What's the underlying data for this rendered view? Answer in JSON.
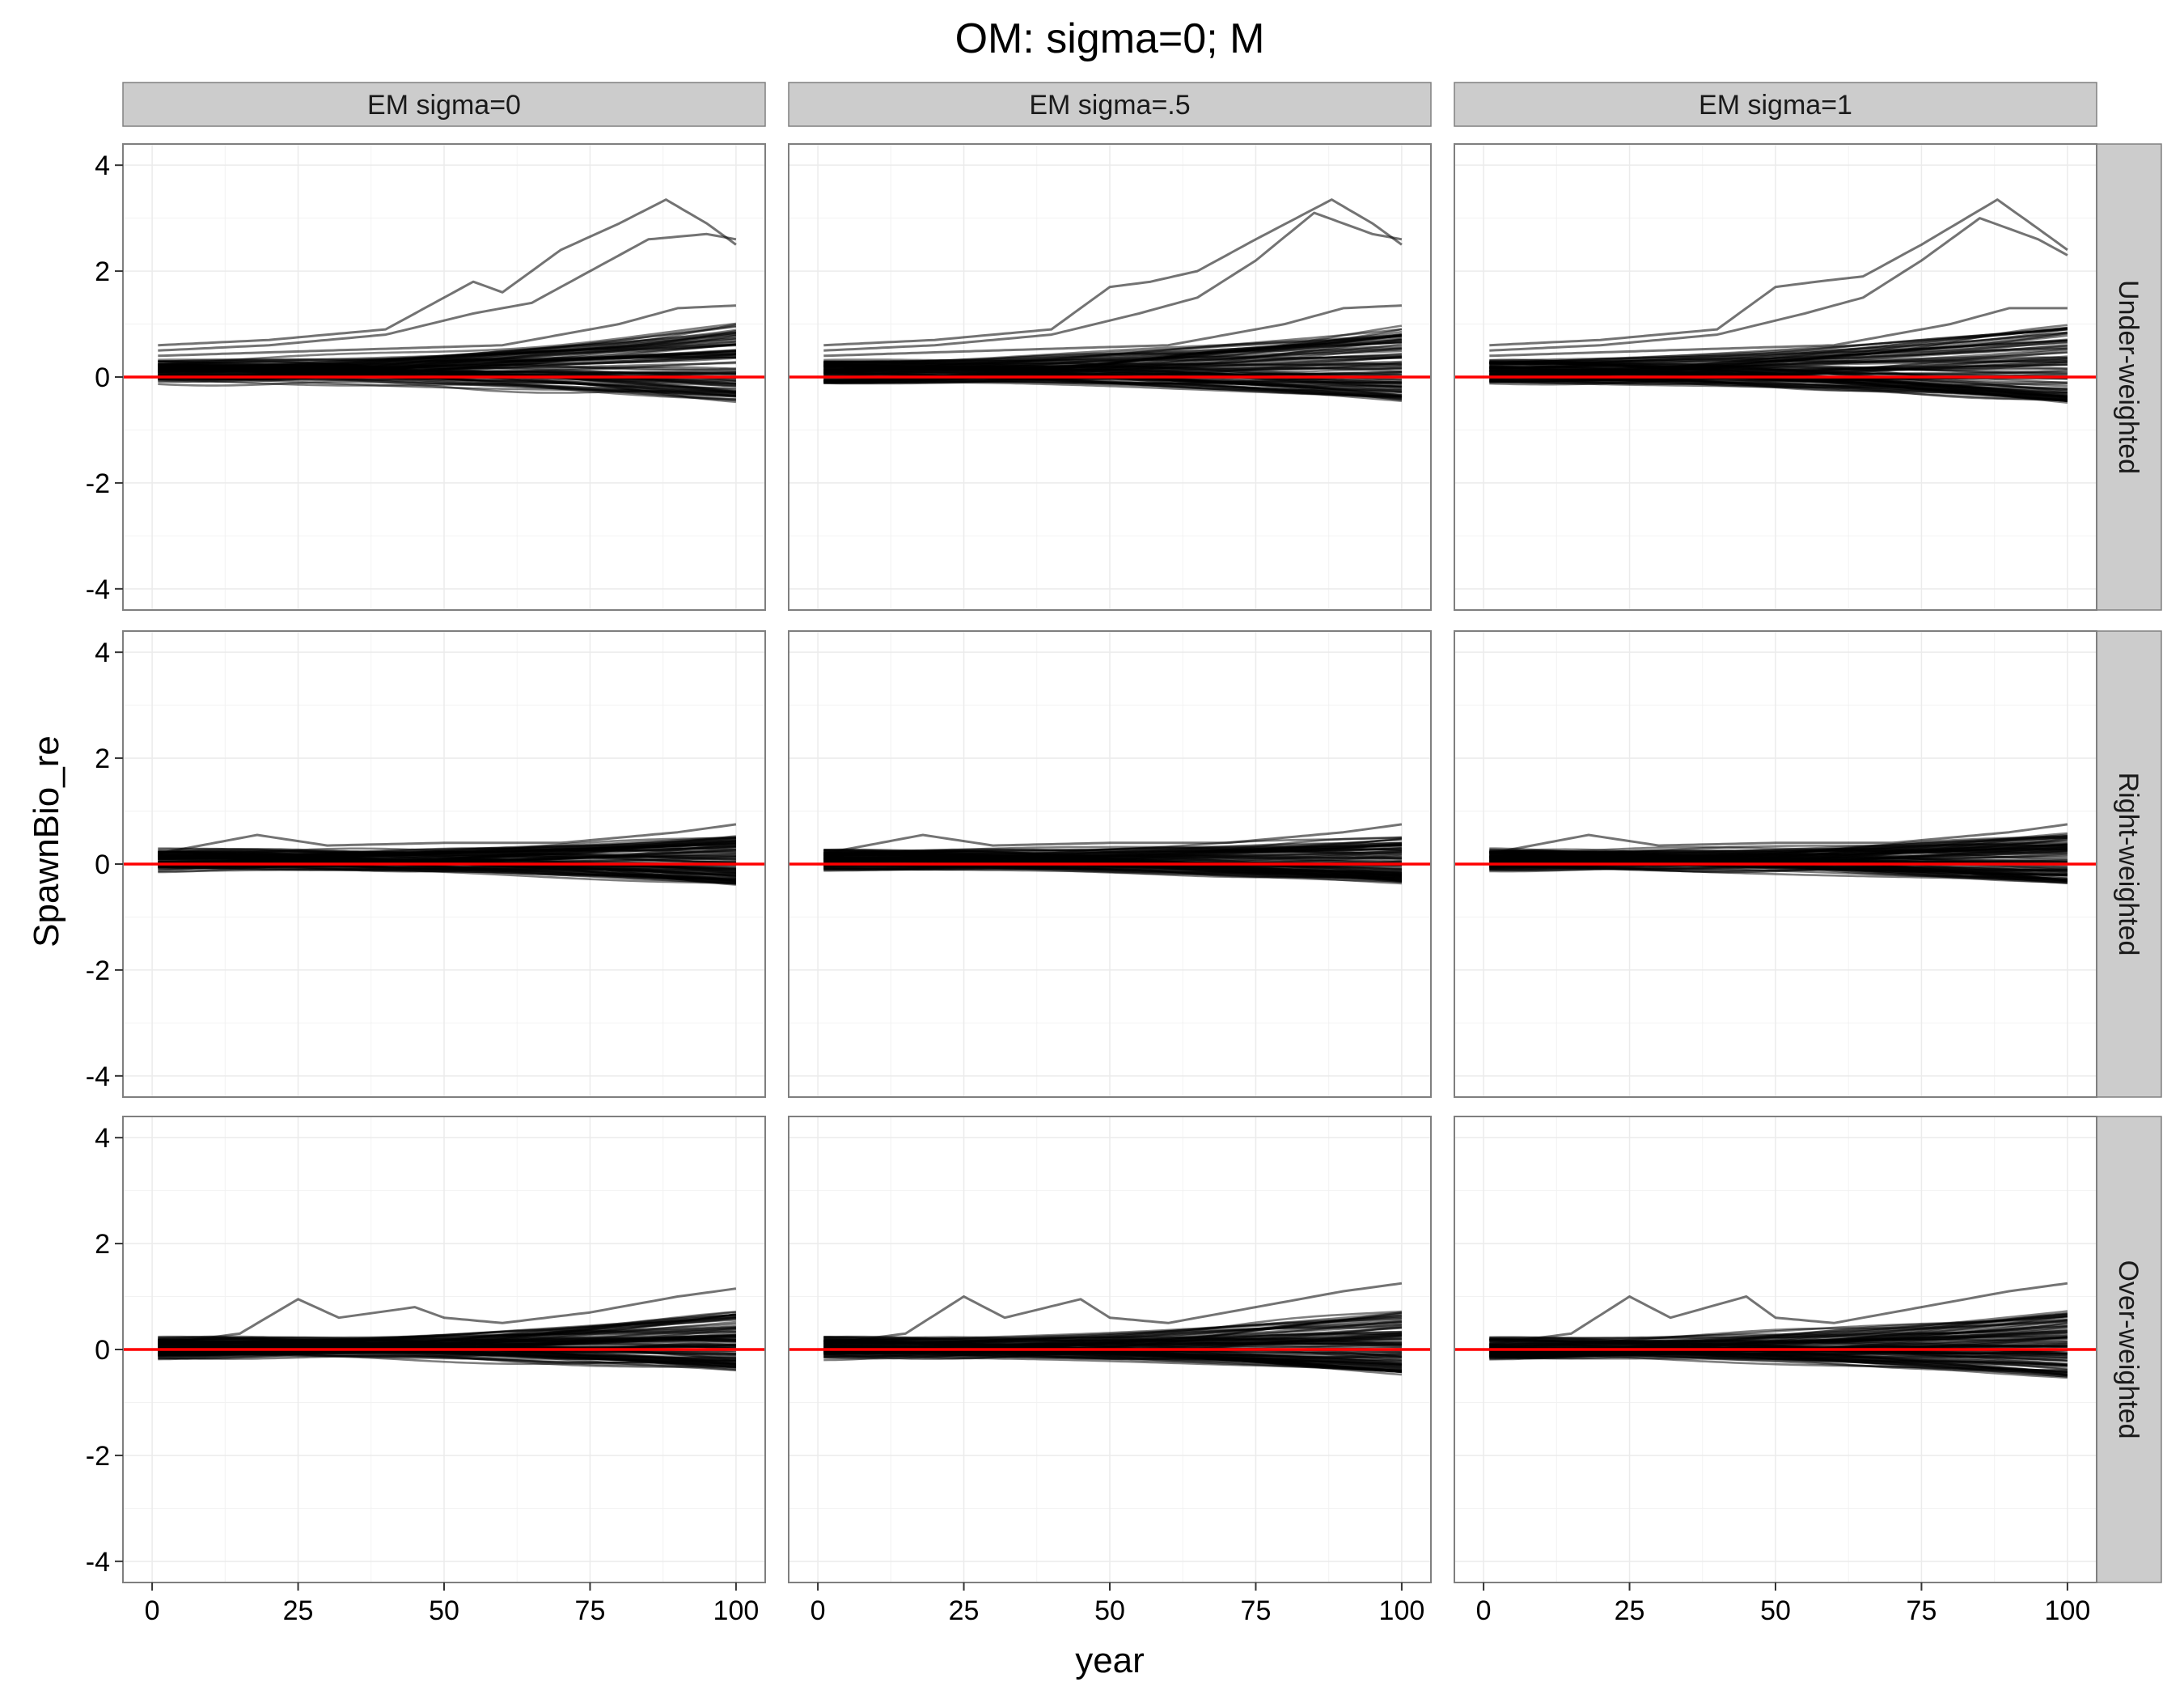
{
  "chart_data": {
    "type": "line",
    "title": "OM: sigma=0; M",
    "xlabel": "year",
    "ylabel": "SpawnBio_re",
    "xlim": [
      -5,
      105
    ],
    "ylim": [
      -4.4,
      4.4
    ],
    "x_ticks": [
      0,
      25,
      50,
      75,
      100
    ],
    "y_ticks": [
      -4,
      -2,
      0,
      2,
      4
    ],
    "grid": true,
    "reference_line": {
      "y": 0,
      "color": "#ff0000"
    },
    "line_color": "#000000",
    "columns": [
      "EM sigma=0",
      "EM sigma=.5",
      "EM sigma=1"
    ],
    "rows": [
      "Under-weighted",
      "Right-weighted",
      "Over-weighted"
    ],
    "years": {
      "start": 1,
      "end": 100
    },
    "panels": [
      {
        "row": "Under-weighted",
        "column": "EM sigma=0",
        "envelope_min_start": -0.1,
        "envelope_max_start": 0.3,
        "envelope_min_end": -0.45,
        "envelope_max_end": 1.0,
        "highlighted_series": [
          {
            "x": [
              1,
              20,
              40,
              55,
              60,
              70,
              80,
              88,
              95,
              100
            ],
            "values": [
              0.6,
              0.7,
              0.9,
              1.8,
              1.6,
              2.4,
              2.9,
              3.35,
              2.9,
              2.5
            ]
          },
          {
            "x": [
              1,
              20,
              40,
              55,
              65,
              75,
              85,
              95,
              100
            ],
            "values": [
              0.5,
              0.6,
              0.8,
              1.2,
              1.4,
              2.0,
              2.6,
              2.7,
              2.6
            ]
          },
          {
            "x": [
              1,
              30,
              60,
              80,
              90,
              100
            ],
            "values": [
              0.4,
              0.5,
              0.6,
              1.0,
              1.3,
              1.35
            ]
          }
        ]
      },
      {
        "row": "Under-weighted",
        "column": "EM sigma=.5",
        "envelope_min_start": -0.1,
        "envelope_max_start": 0.3,
        "envelope_min_end": -0.45,
        "envelope_max_end": 1.0,
        "highlighted_series": [
          {
            "x": [
              1,
              20,
              40,
              50,
              57,
              65,
              75,
              88,
              95,
              100
            ],
            "values": [
              0.6,
              0.7,
              0.9,
              1.7,
              1.8,
              2.0,
              2.6,
              3.35,
              2.9,
              2.5
            ]
          },
          {
            "x": [
              1,
              20,
              40,
              55,
              65,
              75,
              85,
              95,
              100
            ],
            "values": [
              0.5,
              0.6,
              0.8,
              1.2,
              1.5,
              2.2,
              3.1,
              2.7,
              2.6
            ]
          },
          {
            "x": [
              1,
              30,
              60,
              80,
              90,
              100
            ],
            "values": [
              0.4,
              0.5,
              0.6,
              1.0,
              1.3,
              1.35
            ]
          }
        ]
      },
      {
        "row": "Under-weighted",
        "column": "EM sigma=1",
        "envelope_min_start": -0.1,
        "envelope_max_start": 0.3,
        "envelope_min_end": -0.45,
        "envelope_max_end": 1.0,
        "highlighted_series": [
          {
            "x": [
              1,
              20,
              40,
              50,
              57,
              65,
              75,
              88,
              95,
              100
            ],
            "values": [
              0.6,
              0.7,
              0.9,
              1.7,
              1.8,
              1.9,
              2.5,
              3.35,
              2.8,
              2.4
            ]
          },
          {
            "x": [
              1,
              20,
              40,
              55,
              65,
              75,
              85,
              95,
              100
            ],
            "values": [
              0.5,
              0.6,
              0.8,
              1.2,
              1.5,
              2.2,
              3.0,
              2.6,
              2.3
            ]
          },
          {
            "x": [
              1,
              30,
              60,
              80,
              90,
              100
            ],
            "values": [
              0.4,
              0.5,
              0.6,
              1.0,
              1.3,
              1.3
            ]
          }
        ]
      },
      {
        "row": "Right-weighted",
        "column": "EM sigma=0",
        "envelope_min_start": -0.1,
        "envelope_max_start": 0.25,
        "envelope_min_end": -0.35,
        "envelope_max_end": 0.55,
        "highlighted_series": [
          {
            "x": [
              1,
              18,
              30,
              50,
              70,
              90,
              100
            ],
            "values": [
              0.2,
              0.55,
              0.35,
              0.4,
              0.4,
              0.6,
              0.75
            ]
          }
        ]
      },
      {
        "row": "Right-weighted",
        "column": "EM sigma=.5",
        "envelope_min_start": -0.1,
        "envelope_max_start": 0.25,
        "envelope_min_end": -0.35,
        "envelope_max_end": 0.55,
        "highlighted_series": [
          {
            "x": [
              1,
              18,
              30,
              50,
              70,
              90,
              100
            ],
            "values": [
              0.2,
              0.55,
              0.35,
              0.4,
              0.4,
              0.6,
              0.75
            ]
          }
        ]
      },
      {
        "row": "Right-weighted",
        "column": "EM sigma=1",
        "envelope_min_start": -0.1,
        "envelope_max_start": 0.25,
        "envelope_min_end": -0.35,
        "envelope_max_end": 0.55,
        "highlighted_series": [
          {
            "x": [
              1,
              18,
              30,
              50,
              70,
              90,
              100
            ],
            "values": [
              0.2,
              0.55,
              0.35,
              0.4,
              0.4,
              0.6,
              0.75
            ]
          }
        ]
      },
      {
        "row": "Over-weighted",
        "column": "EM sigma=0",
        "envelope_min_start": -0.15,
        "envelope_max_start": 0.2,
        "envelope_min_end": -0.4,
        "envelope_max_end": 0.7,
        "highlighted_series": [
          {
            "x": [
              1,
              15,
              25,
              32,
              45,
              50,
              60,
              75,
              90,
              100
            ],
            "values": [
              0.1,
              0.3,
              0.95,
              0.6,
              0.8,
              0.6,
              0.5,
              0.7,
              1.0,
              1.15
            ]
          }
        ]
      },
      {
        "row": "Over-weighted",
        "column": "EM sigma=.5",
        "envelope_min_start": -0.15,
        "envelope_max_start": 0.2,
        "envelope_min_end": -0.45,
        "envelope_max_end": 0.75,
        "highlighted_series": [
          {
            "x": [
              1,
              15,
              25,
              32,
              45,
              50,
              60,
              75,
              90,
              100
            ],
            "values": [
              0.1,
              0.3,
              1.0,
              0.6,
              0.95,
              0.6,
              0.5,
              0.8,
              1.1,
              1.25
            ]
          }
        ]
      },
      {
        "row": "Over-weighted",
        "column": "EM sigma=1",
        "envelope_min_start": -0.15,
        "envelope_max_start": 0.2,
        "envelope_min_end": -0.5,
        "envelope_max_end": 0.75,
        "highlighted_series": [
          {
            "x": [
              1,
              15,
              25,
              32,
              45,
              50,
              60,
              75,
              90,
              100
            ],
            "values": [
              0.1,
              0.3,
              1.0,
              0.6,
              1.0,
              0.6,
              0.5,
              0.8,
              1.1,
              1.25
            ]
          }
        ]
      }
    ]
  }
}
